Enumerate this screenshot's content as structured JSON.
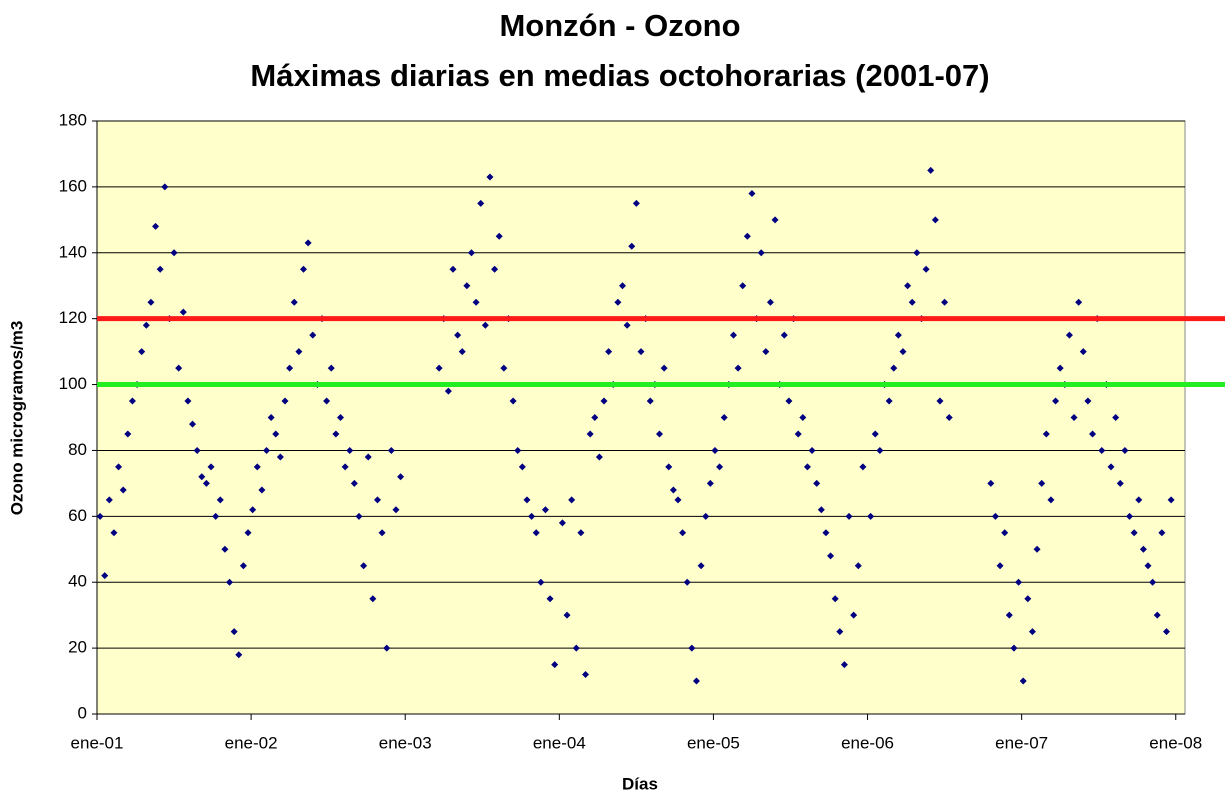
{
  "chart_data": {
    "type": "scatter",
    "title": "Monzón - Ozono",
    "subtitle": "Máximas diarias en medias octohorarias (2001-07)",
    "x_label": "Días",
    "y_label": "Ozono microgramos/m3",
    "color": "#000080",
    "x": [
      2001.02,
      2001.05,
      2001.08,
      2001.11,
      2001.14,
      2001.17,
      2001.2,
      2001.23,
      2001.26,
      2001.29,
      2001.32,
      2001.35,
      2001.38,
      2001.41,
      2001.44,
      2001.47,
      2001.5,
      2001.53,
      2001.56,
      2001.59,
      2001.62,
      2001.65,
      2001.68,
      2001.71,
      2001.74,
      2001.77,
      2001.8,
      2001.83,
      2001.86,
      2001.89,
      2001.92,
      2001.95,
      2001.98,
      2002.01,
      2002.04,
      2002.07,
      2002.1,
      2002.13,
      2002.16,
      2002.19,
      2002.22,
      2002.25,
      2002.28,
      2002.31,
      2002.34,
      2002.37,
      2002.4,
      2002.43,
      2002.46,
      2002.49,
      2002.52,
      2002.55,
      2002.58,
      2002.61,
      2002.64,
      2002.67,
      2002.7,
      2002.73,
      2002.76,
      2002.79,
      2002.82,
      2002.85,
      2002.88,
      2002.91,
      2002.94,
      2002.97,
      2003.22,
      2003.25,
      2003.28,
      2003.31,
      2003.34,
      2003.37,
      2003.4,
      2003.43,
      2003.46,
      2003.49,
      2003.52,
      2003.55,
      2003.58,
      2003.61,
      2003.64,
      2003.67,
      2003.7,
      2003.73,
      2003.76,
      2003.79,
      2003.82,
      2003.85,
      2003.88,
      2003.91,
      2003.94,
      2003.97,
      2004.02,
      2004.05,
      2004.08,
      2004.11,
      2004.14,
      2004.17,
      2004.2,
      2004.23,
      2004.26,
      2004.29,
      2004.32,
      2004.35,
      2004.38,
      2004.41,
      2004.44,
      2004.47,
      2004.5,
      2004.53,
      2004.56,
      2004.59,
      2004.62,
      2004.65,
      2004.68,
      2004.71,
      2004.74,
      2004.77,
      2004.8,
      2004.83,
      2004.86,
      2004.89,
      2004.92,
      2004.95,
      2004.98,
      2005.01,
      2005.04,
      2005.07,
      2005.1,
      2005.13,
      2005.16,
      2005.19,
      2005.22,
      2005.25,
      2005.28,
      2005.31,
      2005.34,
      2005.37,
      2005.4,
      2005.43,
      2005.46,
      2005.49,
      2005.52,
      2005.55,
      2005.58,
      2005.61,
      2005.64,
      2005.67,
      2005.7,
      2005.73,
      2005.76,
      2005.79,
      2005.82,
      2005.85,
      2005.88,
      2005.91,
      2005.94,
      2005.97,
      2006.02,
      2006.05,
      2006.08,
      2006.11,
      2006.14,
      2006.17,
      2006.2,
      2006.23,
      2006.26,
      2006.29,
      2006.32,
      2006.35,
      2006.38,
      2006.41,
      2006.44,
      2006.47,
      2006.5,
      2006.53,
      2006.8,
      2006.83,
      2006.86,
      2006.89,
      2006.92,
      2006.95,
      2006.98,
      2007.01,
      2007.04,
      2007.07,
      2007.1,
      2007.13,
      2007.16,
      2007.19,
      2007.22,
      2007.25,
      2007.28,
      2007.31,
      2007.34,
      2007.37,
      2007.4,
      2007.43,
      2007.46,
      2007.49,
      2007.52,
      2007.55,
      2007.58,
      2007.61,
      2007.64,
      2007.67,
      2007.7,
      2007.73,
      2007.76,
      2007.79,
      2007.82,
      2007.85,
      2007.88,
      2007.91,
      2007.94,
      2007.97
    ],
    "values": [
      60,
      42,
      65,
      55,
      75,
      68,
      85,
      95,
      100,
      110,
      118,
      125,
      148,
      135,
      160,
      120,
      140,
      105,
      122,
      95,
      88,
      80,
      72,
      70,
      75,
      60,
      65,
      50,
      40,
      25,
      18,
      45,
      55,
      62,
      75,
      68,
      80,
      90,
      85,
      78,
      95,
      105,
      125,
      110,
      135,
      143,
      115,
      100,
      120,
      95,
      105,
      85,
      90,
      75,
      80,
      70,
      60,
      45,
      78,
      35,
      65,
      55,
      20,
      80,
      62,
      72,
      105,
      120,
      98,
      135,
      115,
      110,
      130,
      140,
      125,
      155,
      118,
      163,
      135,
      145,
      105,
      120,
      95,
      80,
      75,
      65,
      60,
      55,
      40,
      62,
      35,
      15,
      58,
      30,
      65,
      20,
      55,
      12,
      85,
      90,
      78,
      95,
      110,
      100,
      125,
      130,
      118,
      142,
      155,
      110,
      120,
      95,
      100,
      85,
      105,
      75,
      68,
      65,
      55,
      40,
      20,
      10,
      45,
      60,
      70,
      80,
      75,
      90,
      100,
      115,
      105,
      130,
      145,
      158,
      120,
      140,
      110,
      125,
      150,
      100,
      115,
      95,
      120,
      85,
      90,
      75,
      80,
      70,
      62,
      55,
      48,
      35,
      25,
      15,
      60,
      30,
      45,
      75,
      60,
      85,
      80,
      100,
      95,
      105,
      115,
      110,
      130,
      125,
      140,
      120,
      135,
      165,
      150,
      95,
      125,
      90,
      70,
      60,
      45,
      55,
      30,
      20,
      40,
      10,
      35,
      25,
      50,
      70,
      85,
      65,
      95,
      105,
      100,
      115,
      90,
      125,
      110,
      95,
      85,
      120,
      80,
      100,
      75,
      90,
      70,
      80,
      60,
      55,
      65,
      50,
      45,
      40,
      30,
      55,
      25,
      65
    ],
    "xlim": [
      2001,
      2008.06
    ],
    "xticks": [
      {
        "value": 2001,
        "label": "ene-01"
      },
      {
        "value": 2002,
        "label": "ene-02"
      },
      {
        "value": 2003,
        "label": "ene-03"
      },
      {
        "value": 2004,
        "label": "ene-04"
      },
      {
        "value": 2005,
        "label": "ene-05"
      },
      {
        "value": 2006,
        "label": "ene-06"
      },
      {
        "value": 2007,
        "label": "ene-07"
      },
      {
        "value": 2008,
        "label": "ene-08"
      }
    ],
    "ylim": [
      0,
      180
    ],
    "yticks": [
      0,
      20,
      40,
      60,
      80,
      100,
      120,
      140,
      160,
      180
    ],
    "grid": true,
    "thresholds": [
      {
        "value": 120,
        "color": "#ff1a1a"
      },
      {
        "value": 100,
        "color": "#22ee22"
      }
    ]
  }
}
